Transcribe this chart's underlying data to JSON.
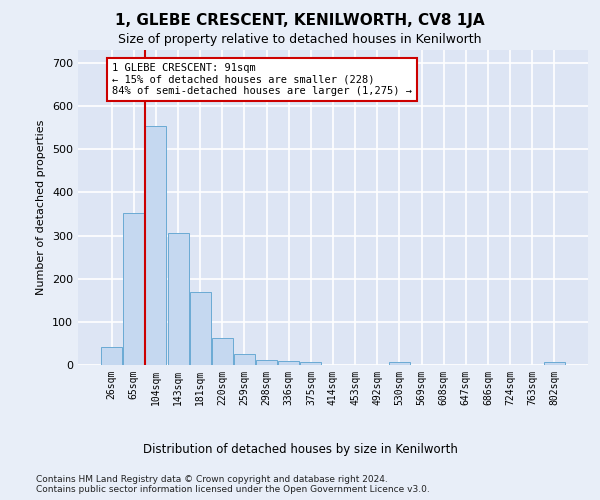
{
  "title": "1, GLEBE CRESCENT, KENILWORTH, CV8 1JA",
  "subtitle": "Size of property relative to detached houses in Kenilworth",
  "xlabel": "Distribution of detached houses by size in Kenilworth",
  "ylabel": "Number of detached properties",
  "footer_line1": "Contains HM Land Registry data © Crown copyright and database right 2024.",
  "footer_line2": "Contains public sector information licensed under the Open Government Licence v3.0.",
  "bar_labels": [
    "26sqm",
    "65sqm",
    "104sqm",
    "143sqm",
    "181sqm",
    "220sqm",
    "259sqm",
    "298sqm",
    "336sqm",
    "375sqm",
    "414sqm",
    "453sqm",
    "492sqm",
    "530sqm",
    "569sqm",
    "608sqm",
    "647sqm",
    "686sqm",
    "724sqm",
    "763sqm",
    "802sqm"
  ],
  "bar_values": [
    42,
    352,
    553,
    305,
    170,
    62,
    25,
    12,
    10,
    7,
    0,
    0,
    0,
    7,
    0,
    0,
    0,
    0,
    0,
    0,
    7
  ],
  "bar_color": "#c5d8f0",
  "bar_edge_color": "#6aaad4",
  "annotation_text": "1 GLEBE CRESCENT: 91sqm\n← 15% of detached houses are smaller (228)\n84% of semi-detached houses are larger (1,275) →",
  "vline_x": 1.5,
  "ylim": [
    0,
    730
  ],
  "yticks": [
    0,
    100,
    200,
    300,
    400,
    500,
    600,
    700
  ],
  "annotation_box_color": "#ffffff",
  "annotation_box_edge": "#cc0000",
  "vline_color": "#cc0000",
  "fig_bg_color": "#e8eef8",
  "plot_bg_color": "#dde5f4",
  "grid_color": "#ffffff",
  "title_fontsize": 11,
  "subtitle_fontsize": 9,
  "ylabel_fontsize": 8,
  "xlabel_fontsize": 8.5,
  "tick_fontsize": 7,
  "annotation_fontsize": 7.5,
  "footer_fontsize": 6.5
}
